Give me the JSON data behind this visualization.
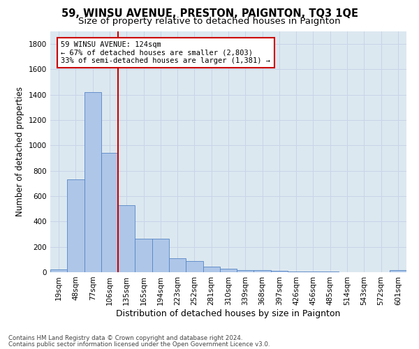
{
  "title": "59, WINSU AVENUE, PRESTON, PAIGNTON, TQ3 1QE",
  "subtitle": "Size of property relative to detached houses in Paignton",
  "xlabel": "Distribution of detached houses by size in Paignton",
  "ylabel": "Number of detached properties",
  "footnote1": "Contains HM Land Registry data © Crown copyright and database right 2024.",
  "footnote2": "Contains public sector information licensed under the Open Government Licence v3.0.",
  "categories": [
    "19sqm",
    "48sqm",
    "77sqm",
    "106sqm",
    "135sqm",
    "165sqm",
    "194sqm",
    "223sqm",
    "252sqm",
    "281sqm",
    "310sqm",
    "339sqm",
    "368sqm",
    "397sqm",
    "426sqm",
    "456sqm",
    "485sqm",
    "514sqm",
    "543sqm",
    "572sqm",
    "601sqm"
  ],
  "values": [
    20,
    735,
    1420,
    940,
    530,
    265,
    265,
    110,
    90,
    45,
    28,
    18,
    18,
    12,
    8,
    5,
    3,
    2,
    2,
    2,
    18
  ],
  "bar_color": "#aec6e8",
  "bar_edge_color": "#5585c5",
  "vline_color": "#cc0000",
  "vline_index": 3.5,
  "annotation_text_line1": "59 WINSU AVENUE: 124sqm",
  "annotation_text_line2": "← 67% of detached houses are smaller (2,803)",
  "annotation_text_line3": "33% of semi-detached houses are larger (1,381) →",
  "annotation_box_facecolor": "#ffffff",
  "annotation_box_edgecolor": "#cc0000",
  "ylim": [
    0,
    1900
  ],
  "yticks": [
    0,
    200,
    400,
    600,
    800,
    1000,
    1200,
    1400,
    1600,
    1800
  ],
  "grid_color": "#c8d4e8",
  "bg_color": "#dce8f0",
  "title_fontsize": 10.5,
  "subtitle_fontsize": 9.5,
  "ylabel_fontsize": 8.5,
  "xlabel_fontsize": 9,
  "tick_fontsize": 7.5,
  "annot_fontsize": 7.5
}
